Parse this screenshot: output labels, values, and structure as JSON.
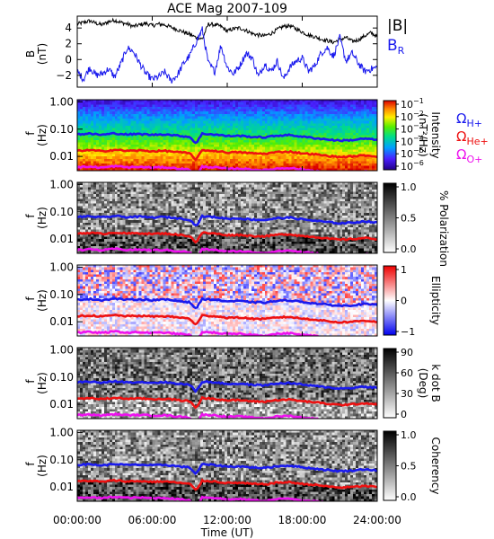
{
  "chart_data": {
    "type": "spectrogram",
    "title": "ACE Mag 2007-109",
    "x_axis": {
      "label": "Time (UT)",
      "range": [
        "00:00:00",
        "24:00:00"
      ],
      "ticks": [
        "00:00:00",
        "06:00:00",
        "12:00:00",
        "18:00:00",
        "24:00:00"
      ],
      "tick_hours": [
        0,
        6,
        12,
        18,
        24
      ]
    },
    "field_panel": {
      "type": "line",
      "ylabel": "B",
      "yunit": "(nT)",
      "ylim": [
        -3.5,
        5.5
      ],
      "yticks": [
        -2,
        0,
        2,
        4
      ],
      "ytick_labels": [
        "−2",
        "0",
        "2",
        "4"
      ],
      "legend_B": "|B|",
      "legend_BR": "B",
      "legend_BR_sub": "R",
      "colors": {
        "B": "#000000",
        "BR": "#1a1aee"
      },
      "series": [
        {
          "name": "|B|",
          "x": [
            0,
            0.5,
            1,
            1.5,
            2,
            2.5,
            3,
            3.5,
            4,
            4.5,
            5,
            5.5,
            6,
            6.5,
            7,
            7.5,
            8,
            8.5,
            9,
            9.5,
            10,
            10.5,
            11,
            11.5,
            12,
            12.5,
            13,
            13.5,
            14,
            14.5,
            15,
            15.5,
            16,
            16.5,
            17,
            17.5,
            18,
            18.5,
            19,
            19.5,
            20,
            20.5,
            21,
            21.5,
            22,
            22.5,
            23,
            23.5,
            24
          ],
          "y": [
            4.5,
            4.7,
            4.9,
            4.6,
            4.4,
            4.8,
            5.0,
            4.7,
            4.5,
            4.2,
            4.4,
            4.6,
            4.3,
            4.5,
            4.4,
            4.1,
            3.8,
            3.5,
            3.2,
            2.8,
            2.6,
            4.5,
            4.4,
            4.2,
            3.6,
            3.9,
            4.0,
            3.7,
            3.3,
            3.1,
            3.0,
            3.3,
            3.8,
            4.2,
            4.3,
            3.9,
            3.5,
            3.1,
            2.9,
            2.6,
            2.4,
            2.2,
            2.5,
            2.8,
            2.3,
            2.5,
            3.0,
            3.4,
            2.9
          ]
        },
        {
          "name": "B_R",
          "x": [
            0,
            0.5,
            1,
            1.5,
            2,
            2.5,
            3,
            3.5,
            4,
            4.5,
            5,
            5.5,
            6,
            6.5,
            7,
            7.5,
            8,
            8.5,
            9,
            9.5,
            10,
            10.5,
            11,
            11.5,
            12,
            12.5,
            13,
            13.5,
            14,
            14.5,
            15,
            15.5,
            16,
            16.5,
            17,
            17.5,
            18,
            18.5,
            19,
            19.5,
            20,
            20.5,
            21,
            21.5,
            22,
            22.5,
            23,
            23.5,
            24
          ],
          "y": [
            -1.5,
            -2.5,
            -1.0,
            -2.0,
            -1.8,
            -1.2,
            -2.2,
            -0.5,
            1.5,
            1.0,
            -0.5,
            -1.8,
            -2.5,
            -2.2,
            -1.6,
            -2.7,
            -2.0,
            -0.5,
            0.5,
            2.2,
            3.8,
            -0.5,
            -1.5,
            1.8,
            -1.0,
            -1.8,
            -0.8,
            0.8,
            0.2,
            -2.2,
            -0.5,
            -1.5,
            -0.2,
            -2.5,
            -1.0,
            -0.2,
            0.2,
            -1.5,
            -0.8,
            0.8,
            1.5,
            0.4,
            2.8,
            -0.2,
            0.8,
            -0.5,
            -1.5,
            -1.2,
            -1.0
          ]
        }
      ]
    },
    "frequency_axis": {
      "label": "f",
      "unit": "(Hz)",
      "scale": "log",
      "range_hz": [
        0.003,
        1.2
      ],
      "ticks": [
        1.0,
        0.1,
        0.01
      ],
      "tick_labels": [
        "1.00",
        "0.10",
        "0.01"
      ]
    },
    "gyrofrequency_lines": {
      "colors": {
        "H": "#1a1aee",
        "He": "#ee1111",
        "O": "#ee11ee"
      },
      "x_hours": [
        0,
        1,
        2,
        3,
        4,
        5,
        6,
        7,
        8,
        9,
        9.5,
        10,
        11,
        12,
        13,
        14,
        15,
        16,
        17,
        18,
        19,
        20,
        21,
        22,
        23,
        24
      ],
      "H_plus_hz": [
        0.065,
        0.068,
        0.062,
        0.07,
        0.064,
        0.066,
        0.062,
        0.065,
        0.058,
        0.052,
        0.03,
        0.068,
        0.064,
        0.056,
        0.057,
        0.052,
        0.05,
        0.058,
        0.061,
        0.053,
        0.047,
        0.042,
        0.038,
        0.04,
        0.045,
        0.04
      ],
      "He_plus_hz": [
        0.016,
        0.017,
        0.0155,
        0.0175,
        0.016,
        0.0165,
        0.0155,
        0.016,
        0.0145,
        0.013,
        0.0075,
        0.017,
        0.016,
        0.014,
        0.0142,
        0.013,
        0.0125,
        0.0145,
        0.015,
        0.013,
        0.012,
        0.0105,
        0.0095,
        0.01,
        0.011,
        0.01
      ],
      "O_plus_hz": [
        0.004,
        0.0042,
        0.0039,
        0.0044,
        0.004,
        0.0041,
        0.0039,
        0.004,
        0.0036,
        0.0033,
        0.0019,
        0.0042,
        0.004,
        0.0035,
        0.0036,
        0.0033,
        0.0031,
        0.0036,
        0.0038,
        0.0033,
        0.003,
        0.0026,
        0.0024,
        0.0025,
        0.0028,
        0.0025
      ],
      "labels": [
        {
          "base": "Ω",
          "sub": "H+"
        },
        {
          "base": "Ω",
          "sub": "He+"
        },
        {
          "base": "Ω",
          "sub": "O+"
        }
      ]
    },
    "panels": [
      {
        "name": "intensity",
        "colormap": "rainbow",
        "colorbar_label": "Intensity",
        "colorbar_unit": "(nT²/Hz)",
        "colorbar_scale": "log",
        "colorbar_range": [
          1e-06,
          1
        ],
        "colorbar_ticks": [
          {
            "base": "10",
            "exp": "−1"
          },
          {
            "base": "10",
            "exp": "−2"
          },
          {
            "base": "10",
            "exp": "−3"
          },
          {
            "base": "10",
            "exp": "−4"
          },
          {
            "base": "10",
            "exp": "−5"
          },
          {
            "base": "10",
            "exp": "−6"
          }
        ]
      },
      {
        "name": "polarization",
        "colormap": "gray",
        "colorbar_label": "% Polarization",
        "colorbar_range": [
          0,
          1
        ],
        "colorbar_ticks": [
          "1.0",
          "0.5",
          "0.0"
        ]
      },
      {
        "name": "ellipticity",
        "colormap": "blue-white-red",
        "colorbar_label": "Ellipticity",
        "colorbar_range": [
          -1,
          1
        ],
        "colorbar_ticks": [
          "1",
          "0",
          "−1"
        ]
      },
      {
        "name": "kdotb",
        "colormap": "gray",
        "colorbar_label": "k dot B",
        "colorbar_unit": "(Deg)",
        "colorbar_range": [
          0,
          90
        ],
        "colorbar_ticks": [
          "90",
          "60",
          "30",
          "0"
        ]
      },
      {
        "name": "coherency",
        "colormap": "gray",
        "colorbar_label": "Coherency",
        "colorbar_range": [
          0,
          1
        ],
        "colorbar_ticks": [
          "1.0",
          "0.5",
          "0.0"
        ]
      }
    ]
  }
}
